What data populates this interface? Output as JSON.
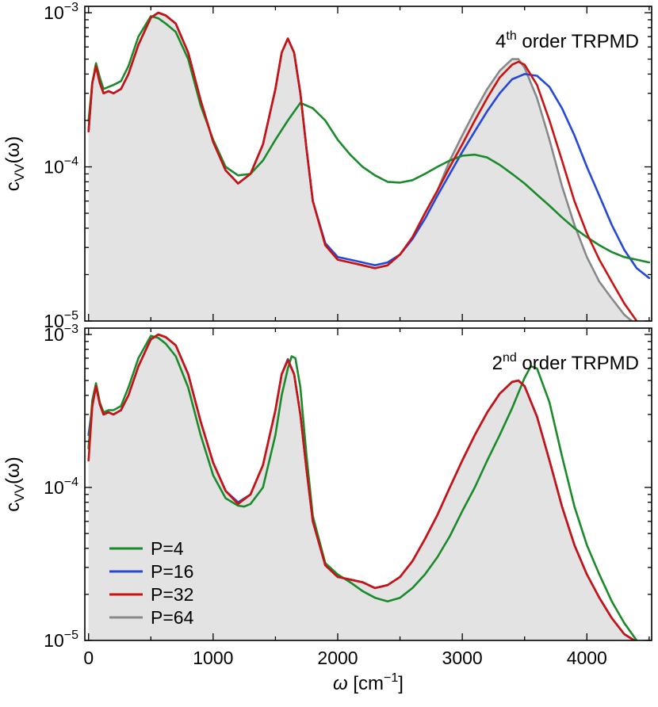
{
  "chart_data": [
    {
      "type": "line",
      "panel": "top",
      "title_main": "4",
      "title_sup": "th",
      "title_rest": " order TRPMD",
      "ylabel_main": "c",
      "ylabel_sub": "VV",
      "ylabel_rest": "(ω)",
      "yscale": "log",
      "ylim": [
        1e-05,
        0.0011
      ],
      "xlim": [
        -30,
        4520
      ],
      "x_ticks": [
        0,
        1000,
        2000,
        3000,
        4000
      ],
      "y_tick_labels": [
        {
          "base": "10",
          "exp": "−3",
          "value": 0.001
        },
        {
          "base": "10",
          "exp": "−4",
          "value": 0.0001
        },
        {
          "base": "10",
          "exp": "−5",
          "value": 1e-05
        }
      ],
      "shaded_series": "P=64",
      "series": [
        {
          "name": "P=4",
          "color": "#1a8a2a",
          "x": [
            0,
            30,
            60,
            90,
            120,
            160,
            200,
            260,
            320,
            400,
            500,
            560,
            620,
            700,
            800,
            900,
            1000,
            1100,
            1200,
            1300,
            1400,
            1500,
            1600,
            1700,
            1800,
            1900,
            2000,
            2100,
            2200,
            2300,
            2400,
            2500,
            2600,
            2700,
            2800,
            2900,
            3000,
            3100,
            3200,
            3300,
            3400,
            3500,
            3600,
            3700,
            3800,
            3900,
            4000,
            4100,
            4200,
            4300,
            4400,
            4500
          ],
          "y": [
            0.0002,
            0.00035,
            0.00047,
            0.00038,
            0.00032,
            0.00033,
            0.00034,
            0.00036,
            0.00045,
            0.0007,
            0.00095,
            0.00092,
            0.00085,
            0.00075,
            0.0005,
            0.00025,
            0.00015,
            0.0001,
            8.8e-05,
            9e-05,
            0.00011,
            0.00015,
            0.0002,
            0.00026,
            0.00024,
            0.0002,
            0.00015,
            0.00012,
            0.0001,
            8.8e-05,
            8e-05,
            7.9e-05,
            8.2e-05,
            9e-05,
            0.0001,
            0.00011,
            0.000118,
            0.00012,
            0.000115,
            0.000103,
            9e-05,
            7.8e-05,
            6.6e-05,
            5.6e-05,
            4.7e-05,
            4e-05,
            3.5e-05,
            3.1e-05,
            2.8e-05,
            2.6e-05,
            2.5e-05,
            2.4e-05
          ]
        },
        {
          "name": "P=16",
          "color": "#2448d8",
          "x": [
            0,
            30,
            60,
            90,
            120,
            160,
            200,
            260,
            320,
            400,
            500,
            560,
            620,
            700,
            800,
            900,
            1000,
            1100,
            1200,
            1300,
            1400,
            1500,
            1550,
            1600,
            1650,
            1700,
            1750,
            1800,
            1900,
            2000,
            2100,
            2200,
            2300,
            2400,
            2500,
            2600,
            2700,
            2800,
            2900,
            3000,
            3100,
            3200,
            3300,
            3400,
            3500,
            3600,
            3700,
            3800,
            3900,
            4000,
            4100,
            4200,
            4300,
            4400,
            4500
          ],
          "y": [
            0.00017,
            0.00035,
            0.00045,
            0.00035,
            0.0003,
            0.00031,
            0.0003,
            0.00032,
            0.0004,
            0.00062,
            0.00093,
            0.001,
            0.00096,
            0.00085,
            0.00055,
            0.00027,
            0.000145,
            9.5e-05,
            7.8e-05,
            9e-05,
            0.00014,
            0.00032,
            0.00055,
            0.00068,
            0.00055,
            0.0003,
            0.00013,
            6e-05,
            3.2e-05,
            2.6e-05,
            2.5e-05,
            2.4e-05,
            2.3e-05,
            2.4e-05,
            2.7e-05,
            3.4e-05,
            4.6e-05,
            6.5e-05,
            9e-05,
            0.000125,
            0.00017,
            0.00023,
            0.0003,
            0.00037,
            0.0004,
            0.00039,
            0.00033,
            0.00024,
            0.00016,
            0.0001,
            6.5e-05,
            4.2e-05,
            2.9e-05,
            2.2e-05,
            1.9e-05
          ]
        },
        {
          "name": "P=32",
          "color": "#cc1111",
          "x": [
            0,
            30,
            60,
            90,
            120,
            160,
            200,
            260,
            320,
            400,
            500,
            560,
            620,
            700,
            800,
            900,
            1000,
            1100,
            1200,
            1300,
            1400,
            1500,
            1550,
            1600,
            1650,
            1700,
            1750,
            1800,
            1900,
            2000,
            2100,
            2200,
            2300,
            2400,
            2500,
            2600,
            2700,
            2800,
            2900,
            3000,
            3100,
            3200,
            3300,
            3400,
            3450,
            3500,
            3600,
            3700,
            3800,
            3900,
            4000,
            4100,
            4200,
            4300,
            4400,
            4450
          ],
          "y": [
            0.00017,
            0.00035,
            0.00045,
            0.00035,
            0.0003,
            0.00031,
            0.0003,
            0.00032,
            0.0004,
            0.00062,
            0.00093,
            0.001,
            0.00096,
            0.00085,
            0.00055,
            0.00027,
            0.000145,
            9.5e-05,
            7.8e-05,
            9e-05,
            0.00014,
            0.00032,
            0.00055,
            0.00068,
            0.00055,
            0.0003,
            0.00013,
            6e-05,
            3.1e-05,
            2.5e-05,
            2.4e-05,
            2.3e-05,
            2.2e-05,
            2.3e-05,
            2.7e-05,
            3.5e-05,
            5e-05,
            7e-05,
            0.0001,
            0.00014,
            0.0002,
            0.00028,
            0.00038,
            0.00046,
            0.00048,
            0.00046,
            0.00034,
            0.0002,
            0.00011,
            6e-05,
            3.7e-05,
            2.5e-05,
            1.8e-05,
            1.3e-05,
            1e-05,
            9.5e-06
          ]
        },
        {
          "name": "P=64",
          "color": "#888888",
          "x": [
            0,
            30,
            60,
            90,
            120,
            160,
            200,
            260,
            320,
            400,
            500,
            560,
            620,
            700,
            800,
            900,
            1000,
            1100,
            1200,
            1300,
            1400,
            1500,
            1550,
            1600,
            1650,
            1700,
            1750,
            1800,
            1900,
            2000,
            2100,
            2200,
            2300,
            2400,
            2500,
            2600,
            2700,
            2800,
            2900,
            3000,
            3100,
            3200,
            3300,
            3400,
            3450,
            3500,
            3600,
            3700,
            3800,
            3900,
            4000,
            4100,
            4200,
            4300,
            4360
          ],
          "y": [
            0.00017,
            0.00035,
            0.00045,
            0.00035,
            0.0003,
            0.00031,
            0.0003,
            0.00032,
            0.0004,
            0.00062,
            0.00093,
            0.001,
            0.00096,
            0.00085,
            0.00055,
            0.00027,
            0.000145,
            9.5e-05,
            7.8e-05,
            9e-05,
            0.00014,
            0.00032,
            0.00055,
            0.00068,
            0.00055,
            0.0003,
            0.00013,
            6e-05,
            3.1e-05,
            2.5e-05,
            2.4e-05,
            2.3e-05,
            2.2e-05,
            2.3e-05,
            2.7e-05,
            3.5e-05,
            5e-05,
            7e-05,
            0.00011,
            0.00016,
            0.00023,
            0.00032,
            0.00042,
            0.0005,
            0.0005,
            0.00044,
            0.00028,
            0.00015,
            7.5e-05,
            4.2e-05,
            2.6e-05,
            1.8e-05,
            1.4e-05,
            1.1e-05,
            1e-05
          ]
        }
      ]
    },
    {
      "type": "line",
      "panel": "bottom",
      "title_main": "2",
      "title_sup": "nd",
      "title_rest": " order TRPMD",
      "ylabel_main": "c",
      "ylabel_sub": "VV",
      "ylabel_rest": "(ω)",
      "xlabel_main": "ω",
      "xlabel_unit": " [cm",
      "xlabel_exp": "−1",
      "xlabel_close": "]",
      "yscale": "log",
      "ylim": [
        1e-05,
        0.0011
      ],
      "xlim": [
        -30,
        4520
      ],
      "x_ticks": [
        0,
        1000,
        2000,
        3000,
        4000
      ],
      "y_tick_labels": [
        {
          "base": "10",
          "exp": "−3",
          "value": 0.001
        },
        {
          "base": "10",
          "exp": "−4",
          "value": 0.0001
        },
        {
          "base": "10",
          "exp": "−5",
          "value": 1e-05
        }
      ],
      "legend": {
        "location": "lower-left",
        "entries": [
          "P=4",
          "P=16",
          "P=32",
          "P=64"
        ]
      },
      "shaded_series": "P=64",
      "series": [
        {
          "name": "P=4",
          "color": "#1a8a2a",
          "x": [
            0,
            30,
            60,
            90,
            120,
            160,
            200,
            260,
            320,
            400,
            500,
            560,
            620,
            700,
            800,
            900,
            1000,
            1100,
            1200,
            1250,
            1300,
            1400,
            1500,
            1550,
            1600,
            1630,
            1660,
            1700,
            1750,
            1800,
            1900,
            2000,
            2100,
            2200,
            2300,
            2400,
            2500,
            2600,
            2700,
            2800,
            2900,
            3000,
            3100,
            3200,
            3300,
            3400,
            3500,
            3550,
            3600,
            3700,
            3800,
            3900,
            4000,
            4100,
            4200,
            4300,
            4400
          ],
          "y": [
            0.00018,
            0.00037,
            0.00048,
            0.00036,
            0.00031,
            0.00032,
            0.00032,
            0.00034,
            0.00045,
            0.0007,
            0.00098,
            0.00095,
            0.00087,
            0.00072,
            0.00045,
            0.00022,
            0.00012,
            8.5e-05,
            7.6e-05,
            7.5e-05,
            7.8e-05,
            0.0001,
            0.00022,
            0.0004,
            0.0006,
            0.00072,
            0.0007,
            0.00045,
            0.00016,
            6.5e-05,
            3.2e-05,
            2.7e-05,
            2.4e-05,
            2.1e-05,
            1.9e-05,
            1.8e-05,
            1.9e-05,
            2.2e-05,
            2.7e-05,
            3.5e-05,
            4.8e-05,
            7e-05,
            0.0001,
            0.00015,
            0.00022,
            0.00033,
            0.00052,
            0.00062,
            0.0006,
            0.00036,
            0.00016,
            7.5e-05,
            4.2e-05,
            2.7e-05,
            1.8e-05,
            1.3e-05,
            1e-05
          ]
        },
        {
          "name": "P=16",
          "color": "#2448d8",
          "x": [
            0,
            30,
            60,
            90,
            120,
            160,
            200,
            260,
            320,
            400,
            500,
            560,
            620,
            700,
            800,
            900,
            1000,
            1100,
            1200,
            1300,
            1400,
            1500,
            1550,
            1600,
            1650,
            1700,
            1750,
            1800,
            1900,
            2000,
            2100,
            2200,
            2300,
            2400,
            2500,
            2600,
            2700,
            2800,
            2900,
            3000,
            3100,
            3200,
            3300,
            3400,
            3450,
            3500,
            3600,
            3700,
            3800,
            3900,
            4000,
            4100,
            4200,
            4300,
            4380
          ],
          "y": [
            0.00022,
            0.00034,
            0.00046,
            0.00035,
            0.0003,
            0.00031,
            0.0003,
            0.00032,
            0.0004,
            0.00062,
            0.00093,
            0.001,
            0.00096,
            0.00085,
            0.00055,
            0.00027,
            0.000145,
            9.5e-05,
            8e-05,
            9e-05,
            0.00014,
            0.00032,
            0.00055,
            0.00069,
            0.00055,
            0.0003,
            0.00013,
            6e-05,
            3.1e-05,
            2.6e-05,
            2.5e-05,
            2.4e-05,
            2.2e-05,
            2.3e-05,
            2.6e-05,
            3.3e-05,
            4.6e-05,
            6.6e-05,
            0.0001,
            0.00015,
            0.00022,
            0.00031,
            0.00041,
            0.00049,
            0.0005,
            0.00046,
            0.00029,
            0.00015,
            7.5e-05,
            4.2e-05,
            2.7e-05,
            1.9e-05,
            1.4e-05,
            1.1e-05,
            1e-05
          ]
        },
        {
          "name": "P=32",
          "color": "#cc1111",
          "x": [
            0,
            30,
            60,
            90,
            120,
            160,
            200,
            260,
            320,
            400,
            500,
            560,
            620,
            700,
            800,
            900,
            1000,
            1100,
            1200,
            1300,
            1400,
            1500,
            1550,
            1600,
            1650,
            1700,
            1750,
            1800,
            1900,
            2000,
            2100,
            2200,
            2300,
            2400,
            2500,
            2600,
            2700,
            2800,
            2900,
            3000,
            3100,
            3200,
            3300,
            3400,
            3450,
            3500,
            3600,
            3700,
            3800,
            3900,
            4000,
            4100,
            4200,
            4300,
            4380
          ],
          "y": [
            0.00015,
            0.00034,
            0.00046,
            0.00035,
            0.0003,
            0.00031,
            0.0003,
            0.00032,
            0.0004,
            0.00062,
            0.00093,
            0.001,
            0.00096,
            0.00085,
            0.00055,
            0.00027,
            0.000145,
            9.5e-05,
            7.8e-05,
            9e-05,
            0.00014,
            0.00032,
            0.00055,
            0.00068,
            0.00055,
            0.0003,
            0.00013,
            6e-05,
            3.1e-05,
            2.6e-05,
            2.5e-05,
            2.4e-05,
            2.2e-05,
            2.3e-05,
            2.6e-05,
            3.3e-05,
            4.6e-05,
            6.6e-05,
            0.0001,
            0.00015,
            0.00022,
            0.00031,
            0.00041,
            0.00049,
            0.0005,
            0.00046,
            0.00029,
            0.00015,
            7.5e-05,
            4.2e-05,
            2.7e-05,
            1.9e-05,
            1.4e-05,
            1.1e-05,
            1e-05
          ]
        },
        {
          "name": "P=64",
          "color": "#888888",
          "x": [
            0,
            30,
            60,
            90,
            120,
            160,
            200,
            260,
            320,
            400,
            500,
            560,
            620,
            700,
            800,
            900,
            1000,
            1100,
            1200,
            1300,
            1400,
            1500,
            1550,
            1600,
            1650,
            1700,
            1750,
            1800,
            1900,
            2000,
            2100,
            2200,
            2300,
            2400,
            2500,
            2600,
            2700,
            2800,
            2900,
            3000,
            3100,
            3200,
            3300,
            3400,
            3450,
            3500,
            3600,
            3700,
            3800,
            3900,
            4000,
            4100,
            4200,
            4300,
            4380
          ],
          "y": [
            0.00018,
            0.00034,
            0.00046,
            0.00035,
            0.0003,
            0.00031,
            0.0003,
            0.00032,
            0.0004,
            0.00062,
            0.00093,
            0.001,
            0.00096,
            0.00085,
            0.00055,
            0.00027,
            0.000145,
            9.5e-05,
            7.8e-05,
            9e-05,
            0.00014,
            0.00032,
            0.00055,
            0.00068,
            0.00055,
            0.0003,
            0.00013,
            6e-05,
            3.1e-05,
            2.6e-05,
            2.5e-05,
            2.4e-05,
            2.2e-05,
            2.3e-05,
            2.6e-05,
            3.3e-05,
            4.6e-05,
            6.6e-05,
            0.0001,
            0.00015,
            0.00022,
            0.00031,
            0.00041,
            0.00049,
            0.0005,
            0.00046,
            0.00029,
            0.00015,
            7.5e-05,
            4.2e-05,
            2.7e-05,
            1.9e-05,
            1.4e-05,
            1.1e-05,
            1e-05
          ]
        }
      ]
    }
  ]
}
